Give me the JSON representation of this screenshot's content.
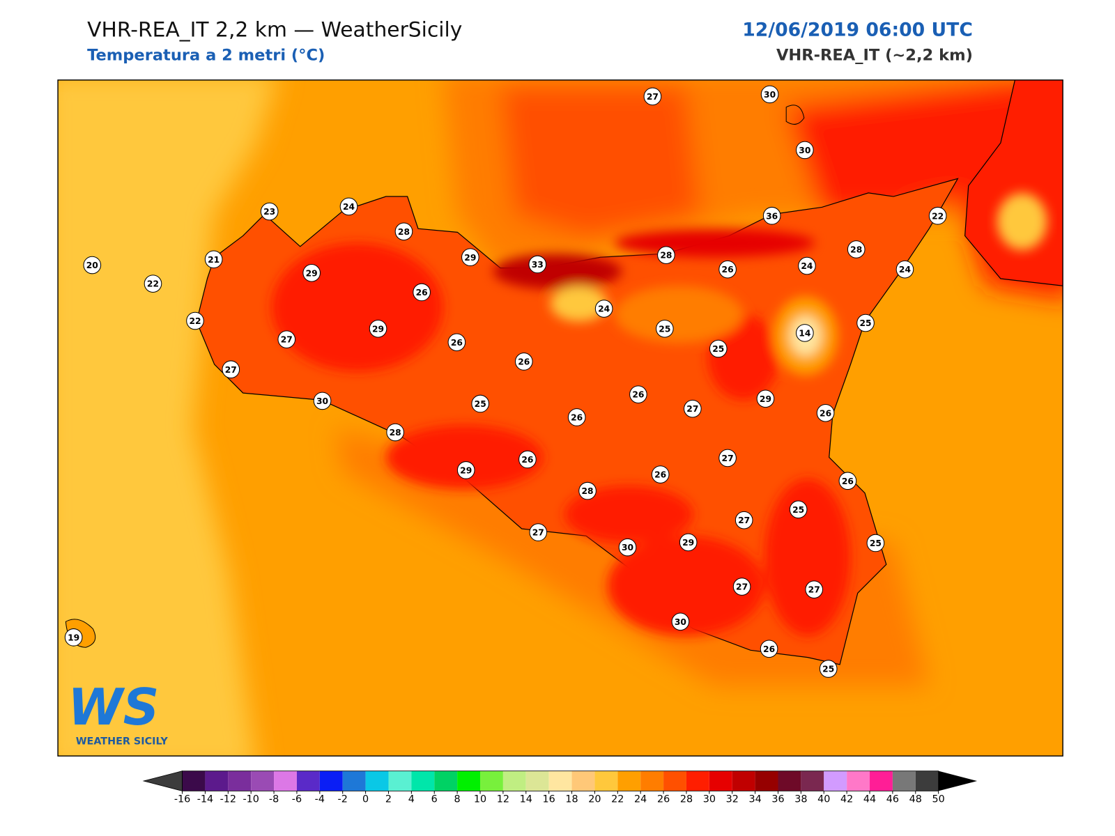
{
  "header": {
    "title": "VHR-REA_IT 2,2 km — WeatherSicily",
    "subtitle": "Temperatura a 2 metri (°C)",
    "date": "12/06/2019 06:00 UTC",
    "model": "VHR-REA_IT (~2,2 km)"
  },
  "stations": [
    27,
    30,
    30,
    23,
    24,
    28,
    36,
    22,
    29,
    33,
    28,
    28,
    26,
    24,
    24,
    20,
    21,
    22,
    29,
    26,
    24,
    22,
    25,
    14,
    25,
    29,
    27,
    26,
    25,
    26,
    27,
    26,
    29,
    30,
    25,
    27,
    26,
    26,
    28,
    27,
    26,
    26,
    26,
    29,
    28,
    25,
    27,
    27,
    29,
    30,
    25,
    27,
    27,
    30,
    26,
    25,
    19
  ],
  "colorbar": {
    "ticks": [
      -16,
      -14,
      -12,
      -10,
      -8,
      -6,
      -4,
      -2,
      0,
      2,
      4,
      6,
      8,
      10,
      12,
      14,
      16,
      18,
      20,
      22,
      24,
      26,
      28,
      30,
      32,
      34,
      36,
      38,
      40,
      42,
      44,
      46,
      48,
      50
    ],
    "colors": [
      "#3b0a4a",
      "#5c1a8c",
      "#7a2e9c",
      "#9a4bb4",
      "#dc78e6",
      "#5a2ac8",
      "#0a1ef5",
      "#1e78d7",
      "#0ac8e6",
      "#5af0d2",
      "#00e6aa",
      "#00d264",
      "#00f000",
      "#78f03c",
      "#c0ee82",
      "#dce696",
      "#ffe6a0",
      "#ffc878",
      "#ffc83c",
      "#ff9f00",
      "#ff7d00",
      "#ff5000",
      "#ff1e00",
      "#e60000",
      "#c00000",
      "#960000",
      "#6e0a28",
      "#7a2850",
      "#d29bff",
      "#ff78c8",
      "#ff1e96",
      "#787878",
      "#3c3c3c"
    ]
  },
  "logo": {
    "mark": "WS",
    "name": "WEATHER SICILY"
  }
}
